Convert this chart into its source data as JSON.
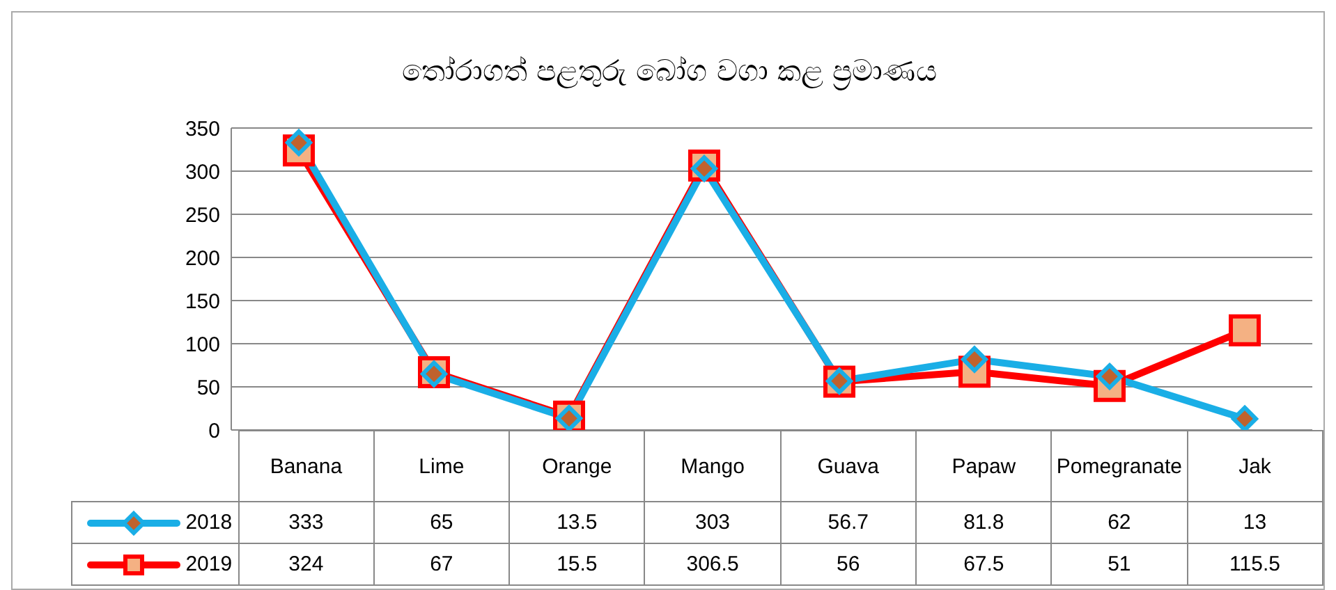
{
  "chart_data": {
    "type": "line",
    "title": "තෝරාගත් පළතුරු බෝග වගා කළ ප්‍රමාණය",
    "categories": [
      "Banana",
      "Lime",
      "Orange",
      "Mango",
      "Guava",
      "Papaw",
      "Pomegranate",
      "Jak"
    ],
    "series": [
      {
        "name": "2018",
        "color": "#1aaee6",
        "marker": "diamond",
        "values": [
          333,
          65,
          13.5,
          303,
          56.7,
          81.8,
          62,
          13
        ]
      },
      {
        "name": "2019",
        "color": "#ff0000",
        "marker": "square",
        "values": [
          324,
          67,
          15.5,
          306.5,
          56,
          67.5,
          51,
          115.5
        ]
      }
    ],
    "ylim": [
      0,
      350
    ],
    "yticks": [
      0,
      50,
      100,
      150,
      200,
      250,
      300,
      350
    ],
    "grid": "y",
    "data_labels": true,
    "legend": "bottom left"
  }
}
